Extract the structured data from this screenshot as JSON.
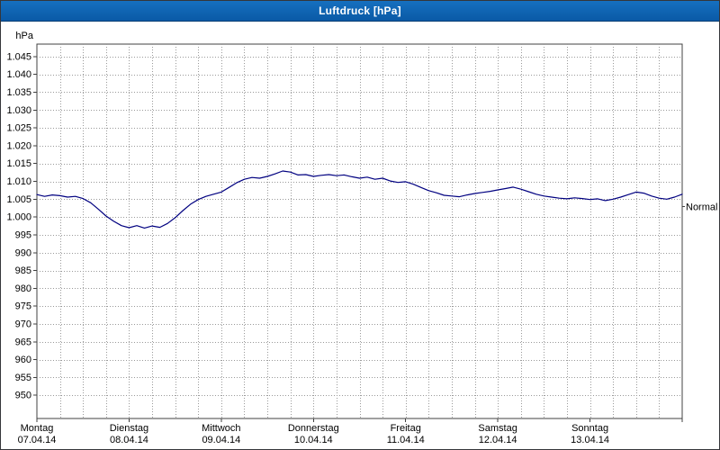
{
  "window": {
    "title": "Luftdruck [hPa]"
  },
  "colors": {
    "titlebar": "#0e62b0",
    "titlebar_text": "#ffffff",
    "line": "#000080",
    "grid": "#9a9a9a",
    "axis": "#404040",
    "tick_text": "#000000",
    "plot_bg": "#ffffff",
    "page_bg": "#ffffff"
  },
  "chart_data": {
    "type": "line",
    "title": "Luftdruck [hPa]",
    "xlabel": "",
    "ylabel": "hPa",
    "ylim": [
      943.5,
      1048.5
    ],
    "xlim_hours": [
      0,
      168
    ],
    "x_step_hours": 2,
    "grid": {
      "horizontal_step_hpa": 5,
      "vertical_step_hours": 6,
      "style": "dotted",
      "on": true
    },
    "legend_position": "none",
    "x_days": [
      {
        "name": "Montag",
        "date": "07.04.14"
      },
      {
        "name": "Dienstag",
        "date": "08.04.14"
      },
      {
        "name": "Mittwoch",
        "date": "09.04.14"
      },
      {
        "name": "Donnerstag",
        "date": "10.04.14"
      },
      {
        "name": "Freitag",
        "date": "11.04.14"
      },
      {
        "name": "Samstag",
        "date": "12.04.14"
      },
      {
        "name": "Sonntag",
        "date": "13.04.14"
      }
    ],
    "y_ticks": [
      {
        "label": "1.045",
        "value": 1045
      },
      {
        "label": "1.040",
        "value": 1040
      },
      {
        "label": "1.035",
        "value": 1035
      },
      {
        "label": "1.030",
        "value": 1030
      },
      {
        "label": "1.025",
        "value": 1025
      },
      {
        "label": "1.020",
        "value": 1020
      },
      {
        "label": "1.015",
        "value": 1015
      },
      {
        "label": "1.010",
        "value": 1010
      },
      {
        "label": "1.005",
        "value": 1005
      },
      {
        "label": "1.000",
        "value": 1000
      },
      {
        "label": "995",
        "value": 995
      },
      {
        "label": "990",
        "value": 990
      },
      {
        "label": "985",
        "value": 985
      },
      {
        "label": "980",
        "value": 980
      },
      {
        "label": "975",
        "value": 975
      },
      {
        "label": "970",
        "value": 970
      },
      {
        "label": "965",
        "value": 965
      },
      {
        "label": "960",
        "value": 960
      },
      {
        "label": "955",
        "value": 955
      },
      {
        "label": "950",
        "value": 950
      }
    ],
    "series": [
      {
        "name": "Luftdruck",
        "color": "#000080",
        "values": [
          1006.3,
          1005.8,
          1006.2,
          1006.0,
          1005.6,
          1005.8,
          1005.2,
          1004.0,
          1002.2,
          1000.3,
          998.8,
          997.6,
          997.0,
          997.6,
          996.9,
          997.5,
          997.1,
          998.2,
          999.8,
          1001.8,
          1003.6,
          1004.9,
          1005.8,
          1006.4,
          1007.0,
          1008.3,
          1009.6,
          1010.6,
          1011.1,
          1010.9,
          1011.4,
          1012.1,
          1012.9,
          1012.6,
          1011.8,
          1011.9,
          1011.4,
          1011.7,
          1011.9,
          1011.6,
          1011.8,
          1011.3,
          1010.9,
          1011.2,
          1010.6,
          1010.9,
          1010.1,
          1009.7,
          1009.9,
          1009.2,
          1008.3,
          1007.4,
          1006.8,
          1006.1,
          1005.9,
          1005.7,
          1006.2,
          1006.6,
          1006.9,
          1007.2,
          1007.6,
          1008.0,
          1008.4,
          1007.8,
          1007.1,
          1006.4,
          1005.9,
          1005.6,
          1005.3,
          1005.1,
          1005.4,
          1005.2,
          1004.9,
          1005.1,
          1004.6,
          1005.0,
          1005.6,
          1006.3,
          1007.0,
          1006.7,
          1005.9,
          1005.3,
          1005.0,
          1005.6,
          1006.4
        ]
      }
    ],
    "annotations": [
      {
        "text": "Normal",
        "value": 1003,
        "position": "right"
      }
    ]
  }
}
